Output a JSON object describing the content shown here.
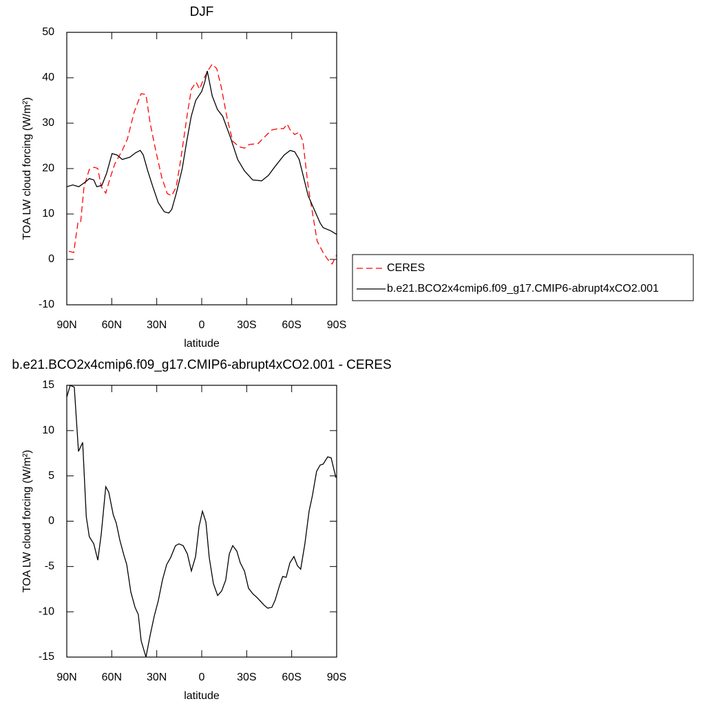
{
  "chart_data": [
    {
      "type": "line",
      "title": "DJF",
      "xlabel": "latitude",
      "ylabel": "TOA LW cloud forcing (W/m²)",
      "xlim": [
        90,
        -90
      ],
      "ylim": [
        -10,
        50
      ],
      "xticks": [
        {
          "value": 90,
          "label": "90N"
        },
        {
          "value": 60,
          "label": "60N"
        },
        {
          "value": 30,
          "label": "30N"
        },
        0,
        {
          "value": -30,
          "label": "30S"
        },
        {
          "value": -60,
          "label": "60S"
        },
        {
          "value": -90,
          "label": "90S"
        }
      ],
      "yticks": [
        -10,
        0,
        10,
        20,
        30,
        40,
        50
      ],
      "legend": "outside-right",
      "series": [
        {
          "name": "CERES",
          "color": "#ff0000",
          "dash": "dashed",
          "x": [
            88.6,
            85.4,
            82.6,
            80.8,
            78.5,
            75,
            71.6,
            69.3,
            67,
            64,
            61,
            58,
            53,
            49.6,
            45,
            40.4,
            37.2,
            34.4,
            30.7,
            26.6,
            23,
            20,
            17,
            14,
            9.6,
            6.9,
            3.7,
            1.4,
            -1,
            -4,
            -7,
            -10,
            -13,
            -17,
            -20.7,
            -25,
            -28.5,
            -31.7,
            -37.6,
            -42,
            -46.8,
            -51,
            -54.6,
            -57,
            -59,
            -62,
            -65,
            -67.5,
            -71,
            -74,
            -77,
            -81,
            -84,
            -87,
            -90
          ],
          "values": [
            1.8,
            1.5,
            8,
            8,
            16,
            19.8,
            20.3,
            20,
            16,
            14.6,
            18,
            21,
            24,
            26.5,
            32.5,
            36.5,
            36.3,
            30,
            24,
            18,
            14.5,
            14,
            16,
            22,
            32,
            37.5,
            39,
            37.5,
            39.5,
            41.5,
            43,
            42,
            38,
            31,
            26,
            24.8,
            24.5,
            25.3,
            25.5,
            27,
            28.5,
            28.8,
            28.8,
            29.8,
            28.5,
            27.5,
            28,
            26,
            16,
            10,
            4,
            1.5,
            0,
            -1,
            1
          ]
        },
        {
          "name": "b.e21.BCO2x4cmip6.f09_g17.CMIP6-abrupt4xCO2.001",
          "color": "#000000",
          "dash": "solid",
          "x": [
            90,
            86,
            82,
            77,
            75,
            72,
            70,
            66.6,
            63.4,
            59.8,
            56.5,
            53,
            48,
            44,
            41,
            39,
            36,
            32.6,
            29,
            25,
            22,
            20,
            17,
            13,
            10,
            7,
            4,
            0,
            -2,
            -3.7,
            -7,
            -10.5,
            -14,
            -19,
            -24,
            -28.5,
            -34,
            -40,
            -44.5,
            -49,
            -55,
            -59,
            -62,
            -65,
            -68,
            -71,
            -75,
            -79,
            -81,
            -86,
            -90
          ],
          "values": [
            16,
            16.4,
            16,
            17.2,
            17.8,
            17.5,
            16,
            16.3,
            19,
            23.3,
            23,
            22,
            22.5,
            23.5,
            24,
            23,
            19.5,
            16,
            12.5,
            10.5,
            10.2,
            11,
            14.5,
            20,
            26,
            31.5,
            35,
            37,
            39,
            41.5,
            36,
            33,
            31.5,
            27,
            22,
            19.5,
            17.5,
            17.3,
            18.5,
            20.5,
            23,
            24,
            23.7,
            22,
            18,
            14,
            11,
            8,
            7,
            6.3,
            5.5
          ]
        }
      ]
    },
    {
      "type": "line",
      "title": "b.e21.BCO2x4cmip6.f09_g17.CMIP6-abrupt4xCO2.001 - CERES",
      "xlabel": "latitude",
      "ylabel": "TOA LW cloud forcing (W/m²)",
      "xlim": [
        90,
        -90
      ],
      "ylim": [
        -15,
        15
      ],
      "xticks": [
        {
          "value": 90,
          "label": "90N"
        },
        {
          "value": 60,
          "label": "60N"
        },
        {
          "value": 30,
          "label": "30N"
        },
        0,
        {
          "value": -30,
          "label": "30S"
        },
        {
          "value": -60,
          "label": "60S"
        },
        {
          "value": -90,
          "label": "90S"
        }
      ],
      "yticks": [
        -15,
        -10,
        -5,
        0,
        5,
        10,
        15
      ],
      "series": [
        {
          "color": "#000000",
          "dash": "solid",
          "x": [
            90,
            87.7,
            85,
            82.2,
            79.4,
            77,
            75,
            72,
            69.3,
            67,
            64,
            62,
            59,
            57,
            54.6,
            52,
            50,
            47.3,
            44.5,
            42.3,
            40.4,
            37.2,
            34.4,
            31.7,
            29,
            26.2,
            23.4,
            20.7,
            17.5,
            15.2,
            12.4,
            9.6,
            6.9,
            4.1,
            1.8,
            -0.5,
            -2.8,
            -5,
            -7.8,
            -10.6,
            -13.3,
            -16,
            -18.4,
            -20.7,
            -23.4,
            -25.7,
            -28.5,
            -31.2,
            -34,
            -36.7,
            -39,
            -41.8,
            -44,
            -46.8,
            -49,
            -51.9,
            -54,
            -56.3,
            -58.8,
            -61.5,
            -63.8,
            -66,
            -68.8,
            -71.6,
            -73.8,
            -76.6,
            -79,
            -81,
            -84,
            -86.3,
            -89.5
          ],
          "values": [
            13.7,
            15,
            14.8,
            7.7,
            8.7,
            0.5,
            -1.7,
            -2.5,
            -4.3,
            -1.4,
            3.8,
            3.2,
            0.7,
            -0.2,
            -2.1,
            -3.7,
            -4.8,
            -7.8,
            -9.5,
            -10.3,
            -13.2,
            -15,
            -12.6,
            -10.5,
            -8.8,
            -6.5,
            -4.8,
            -4,
            -2.7,
            -2.5,
            -2.7,
            -3.6,
            -5.5,
            -3.9,
            -0.6,
            1.1,
            -0.1,
            -4,
            -6.9,
            -8.2,
            -7.7,
            -6.5,
            -3.6,
            -2.7,
            -3.3,
            -4.6,
            -5.5,
            -7.4,
            -8,
            -8.4,
            -8.8,
            -9.3,
            -9.6,
            -9.5,
            -8.7,
            -7.1,
            -6.1,
            -6.2,
            -4.6,
            -3.9,
            -4.9,
            -5.3,
            -2.5,
            1.1,
            2.8,
            5.5,
            6.2,
            6.3,
            7.1,
            7,
            4.8
          ]
        }
      ]
    }
  ]
}
